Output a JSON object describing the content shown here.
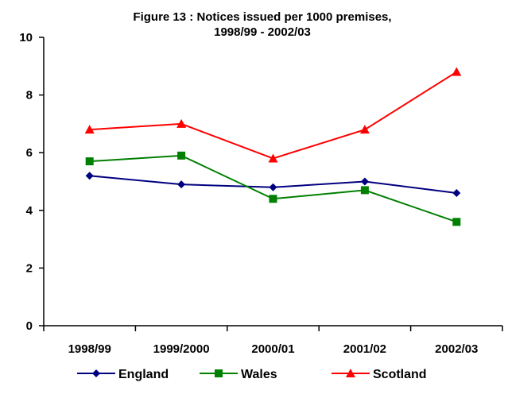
{
  "chart_data": {
    "type": "line",
    "title": [
      "Figure 13 : Notices issued per 1000 premises,",
      "1998/99 - 2002/03"
    ],
    "categories": [
      "1998/99",
      "1999/2000",
      "2000/01",
      "2001/02",
      "2002/03"
    ],
    "ylim": [
      0,
      10
    ],
    "yticks": [
      0,
      2,
      4,
      6,
      8,
      10
    ],
    "grid": false,
    "legend_position": "bottom",
    "series": [
      {
        "name": "England",
        "color": "#000080",
        "marker": "diamond",
        "values": [
          5.2,
          4.9,
          4.8,
          5.0,
          4.6
        ]
      },
      {
        "name": "Wales",
        "color": "#008000",
        "marker": "square",
        "values": [
          5.7,
          5.9,
          4.4,
          4.7,
          3.6
        ]
      },
      {
        "name": "Scotland",
        "color": "#ff0000",
        "marker": "triangle",
        "values": [
          6.8,
          7.0,
          5.8,
          6.8,
          8.8
        ]
      }
    ]
  }
}
